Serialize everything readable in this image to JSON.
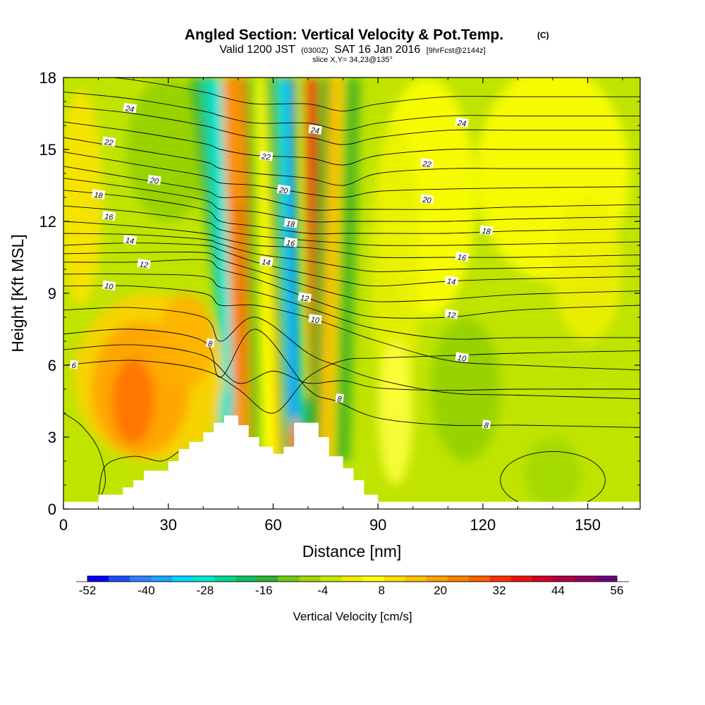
{
  "chart_data": {
    "type": "heatmap",
    "title": "Angled Section: Vertical Velocity & Pot.Temp.",
    "title_suffix": "(C)",
    "subtitle": {
      "prefix": "Valid 1200 JST",
      "zulu": "(0300Z)",
      "date": "SAT 16 Jan 2016",
      "forecast": "[9hrFcst@2144z]"
    },
    "slice_label": "slice X,Y= 34,23@135°",
    "xlabel": "Distance [nm]",
    "ylabel": "Height [Kft MSL]",
    "xlim": [
      0,
      165
    ],
    "ylim": [
      0,
      18
    ],
    "x_ticks": [
      "0",
      "30",
      "60",
      "90",
      "120",
      "150"
    ],
    "x_tick_values": [
      0,
      30,
      60,
      90,
      120,
      150
    ],
    "y_ticks": [
      "0",
      "3",
      "6",
      "9",
      "12",
      "15",
      "18"
    ],
    "y_tick_values": [
      0,
      3,
      6,
      9,
      12,
      15,
      18
    ],
    "colorbar": {
      "label": "Vertical Velocity [cm/s]",
      "range": [
        -52,
        56
      ],
      "tick_labels": [
        "-52",
        "-40",
        "-28",
        "-16",
        "-4",
        "8",
        "20",
        "32",
        "44",
        "56"
      ],
      "tick_values": [
        -52,
        -40,
        -28,
        -16,
        -4,
        8,
        20,
        32,
        44,
        56
      ],
      "colors": [
        "#0000ff",
        "#1a4cff",
        "#3380ff",
        "#1aa6ff",
        "#00d6ff",
        "#00e8d0",
        "#00d890",
        "#10c060",
        "#30b030",
        "#70c810",
        "#a0d800",
        "#c8e800",
        "#eef000",
        "#ffff00",
        "#ffe000",
        "#ffc000",
        "#ffa000",
        "#ff8000",
        "#ff6000",
        "#ff3000",
        "#f01010",
        "#d00020",
        "#b00040",
        "#900060",
        "#700080"
      ]
    },
    "potential_temperature_contours": [
      {
        "value": 6,
        "label": "6",
        "x": [
          0,
          20,
          40,
          50,
          60,
          70,
          80,
          90,
          110,
          130,
          165
        ],
        "y": [
          6.0,
          6.2,
          5.8,
          5.0,
          4.0,
          5.5,
          6.2,
          6.3,
          6.4,
          6.5,
          6.6
        ]
      },
      {
        "value": 8,
        "label": "8",
        "x": [
          0,
          20,
          40,
          45,
          55,
          70,
          78,
          90,
          110,
          130,
          165
        ],
        "y": [
          7.3,
          7.5,
          7.0,
          5.5,
          7.5,
          5.0,
          4.5,
          3.8,
          3.5,
          3.5,
          3.4
        ]
      },
      {
        "value": 10,
        "label": "10",
        "x": [
          0,
          20,
          40,
          45,
          55,
          70,
          80,
          90,
          110,
          130,
          165
        ],
        "y": [
          9.3,
          9.3,
          9.0,
          8.5,
          8.5,
          8.0,
          7.5,
          7.0,
          6.2,
          6.0,
          5.8
        ]
      },
      {
        "value": 12,
        "label": "12",
        "x": [
          0,
          20,
          40,
          45,
          55,
          70,
          80,
          90,
          110,
          130,
          165
        ],
        "y": [
          10.3,
          10.3,
          10.4,
          10.0,
          9.6,
          8.8,
          8.3,
          8.0,
          8.0,
          8.3,
          8.5
        ]
      },
      {
        "value": 14,
        "label": "14",
        "x": [
          0,
          20,
          40,
          45,
          55,
          70,
          80,
          90,
          110,
          130,
          165
        ],
        "y": [
          11.0,
          11.1,
          11.0,
          10.8,
          10.3,
          9.8,
          9.5,
          9.3,
          9.5,
          9.6,
          9.7
        ]
      },
      {
        "value": 16,
        "label": "16",
        "x": [
          0,
          20,
          40,
          45,
          55,
          70,
          80,
          90,
          110,
          130,
          165
        ],
        "y": [
          12.0,
          11.8,
          11.5,
          11.3,
          11.0,
          10.9,
          10.7,
          10.5,
          10.5,
          10.5,
          10.6
        ]
      },
      {
        "value": 18,
        "label": "18",
        "x": [
          0,
          20,
          40,
          45,
          55,
          70,
          80,
          90,
          110,
          130,
          165
        ],
        "y": [
          13.3,
          13.0,
          12.5,
          12.0,
          11.8,
          11.5,
          11.5,
          11.5,
          11.5,
          11.6,
          11.7
        ]
      },
      {
        "value": 20,
        "label": "20",
        "x": [
          0,
          20,
          40,
          45,
          55,
          70,
          80,
          90,
          110,
          130,
          165
        ],
        "y": [
          14.3,
          13.8,
          13.3,
          13.0,
          13.0,
          12.5,
          12.5,
          12.5,
          12.5,
          12.6,
          12.7
        ]
      },
      {
        "value": 22,
        "label": "22",
        "x": [
          0,
          20,
          40,
          45,
          55,
          70,
          80,
          90,
          110,
          130,
          165
        ],
        "y": [
          15.5,
          15.0,
          14.5,
          14.2,
          14.0,
          13.8,
          13.5,
          14.0,
          14.2,
          14.2,
          14.2
        ]
      },
      {
        "value": 24,
        "label": "24",
        "x": [
          0,
          20,
          40,
          45,
          55,
          70,
          80,
          90,
          110,
          130,
          165
        ],
        "y": [
          16.8,
          16.5,
          16.0,
          15.8,
          15.5,
          15.5,
          15.2,
          15.5,
          15.8,
          15.8,
          15.8
        ]
      }
    ],
    "contour_labels": [
      {
        "text": "24",
        "x": 19,
        "y": 16.7
      },
      {
        "text": "22",
        "x": 13,
        "y": 15.3
      },
      {
        "text": "20",
        "x": 26,
        "y": 13.7
      },
      {
        "text": "18",
        "x": 10,
        "y": 13.1
      },
      {
        "text": "16",
        "x": 13,
        "y": 12.2
      },
      {
        "text": "14",
        "x": 19,
        "y": 11.2
      },
      {
        "text": "12",
        "x": 23,
        "y": 10.2
      },
      {
        "text": "10",
        "x": 13,
        "y": 9.3
      },
      {
        "text": "8",
        "x": 42,
        "y": 6.9
      },
      {
        "text": "6",
        "x": 3,
        "y": 6.0
      },
      {
        "text": "22",
        "x": 58,
        "y": 14.7
      },
      {
        "text": "20",
        "x": 63,
        "y": 13.3
      },
      {
        "text": "18",
        "x": 65,
        "y": 11.9
      },
      {
        "text": "16",
        "x": 65,
        "y": 11.1
      },
      {
        "text": "14",
        "x": 58,
        "y": 10.3
      },
      {
        "text": "12",
        "x": 69,
        "y": 8.8
      },
      {
        "text": "10",
        "x": 72,
        "y": 7.9
      },
      {
        "text": "24",
        "x": 72,
        "y": 15.8
      },
      {
        "text": "8",
        "x": 79,
        "y": 4.6
      },
      {
        "text": "24",
        "x": 114,
        "y": 16.1
      },
      {
        "text": "22",
        "x": 104,
        "y": 14.4
      },
      {
        "text": "20",
        "x": 104,
        "y": 12.9
      },
      {
        "text": "18",
        "x": 121,
        "y": 11.6
      },
      {
        "text": "16",
        "x": 114,
        "y": 10.5
      },
      {
        "text": "14",
        "x": 111,
        "y": 9.5
      },
      {
        "text": "12",
        "x": 111,
        "y": 8.1
      },
      {
        "text": "10",
        "x": 114,
        "y": 6.3
      },
      {
        "text": "8",
        "x": 121,
        "y": 3.5
      }
    ],
    "terrain": {
      "x": [
        0,
        10,
        10,
        17,
        17,
        20,
        20,
        23,
        23,
        30,
        30,
        33,
        33,
        36,
        36,
        40,
        40,
        43,
        43,
        46,
        46,
        50,
        50,
        53,
        53,
        56,
        56,
        60,
        60,
        63,
        63,
        66,
        66,
        73,
        73,
        76,
        76,
        80,
        80,
        83,
        83,
        86,
        86,
        90,
        90,
        165
      ],
      "y": [
        0.3,
        0.3,
        0.6,
        0.6,
        0.9,
        0.9,
        1.2,
        1.2,
        1.6,
        1.6,
        2.0,
        2.0,
        2.5,
        2.5,
        2.8,
        2.8,
        3.2,
        3.2,
        3.6,
        3.6,
        3.9,
        3.9,
        3.5,
        3.5,
        3.0,
        3.0,
        2.6,
        2.6,
        2.3,
        2.3,
        2.6,
        2.6,
        3.6,
        3.6,
        3.0,
        3.0,
        2.2,
        2.2,
        1.7,
        1.7,
        1.2,
        1.2,
        0.6,
        0.6,
        0.3,
        0.3
      ]
    }
  }
}
